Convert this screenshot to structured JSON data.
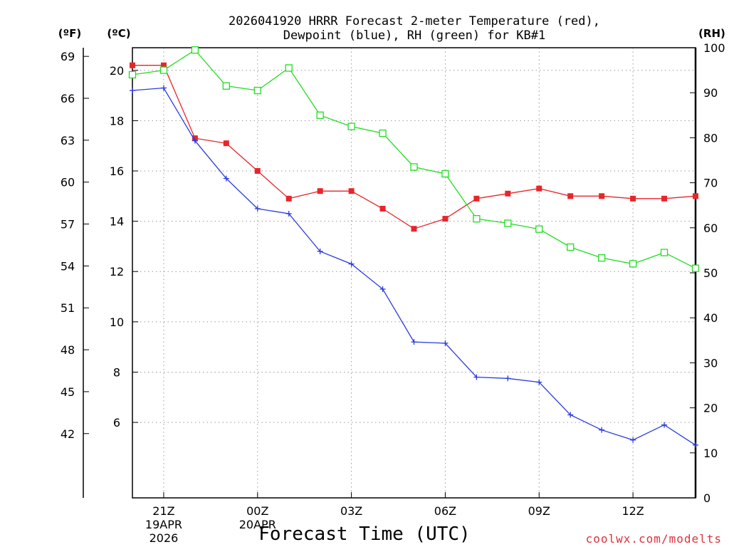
{
  "chart_data": {
    "type": "line",
    "title_line1": "2026041920 HRRR Forecast 2-meter Temperature (red),",
    "title_line2": "Dewpoint (blue), RH (green) for KB#1",
    "xlabel": "Forecast Time (UTC)",
    "unit_f": "(ºF)",
    "unit_c": "(ºC)",
    "unit_rh": "(RH)",
    "watermark": "coolwx.com/modelts",
    "x_hours": [
      20,
      21,
      22,
      23,
      24,
      25,
      26,
      27,
      28,
      29,
      30,
      31,
      32,
      33,
      34,
      35,
      36,
      37,
      38
    ],
    "xlim": [
      20,
      38
    ],
    "x_ticks": [
      {
        "x": 21,
        "label": "21Z",
        "date": "19APR",
        "year": "2026"
      },
      {
        "x": 24,
        "label": "00Z",
        "date": "20APR",
        "year": ""
      },
      {
        "x": 27,
        "label": "03Z",
        "date": "",
        "year": ""
      },
      {
        "x": 30,
        "label": "06Z",
        "date": "",
        "year": ""
      },
      {
        "x": 33,
        "label": "09Z",
        "date": "",
        "year": ""
      },
      {
        "x": 36,
        "label": "12Z",
        "date": "",
        "year": ""
      }
    ],
    "celsius_axis": {
      "ylim": [
        3,
        20.9
      ],
      "ticks": [
        "6",
        "8",
        "10",
        "12",
        "14",
        "16",
        "18",
        "20"
      ]
    },
    "fahrenheit_ticks": [
      "42",
      "45",
      "48",
      "51",
      "54",
      "57",
      "60",
      "63",
      "66",
      "69"
    ],
    "rh_axis": {
      "ylim": [
        0,
        100
      ],
      "ticks": [
        "0",
        "10",
        "20",
        "30",
        "40",
        "50",
        "60",
        "70",
        "80",
        "90",
        "100"
      ]
    },
    "series": [
      {
        "name": "Temperature",
        "color": "#e8252a",
        "axis": "C",
        "marker": "filled-square",
        "values": [
          20.2,
          20.2,
          17.3,
          17.1,
          16.0,
          14.9,
          15.2,
          15.2,
          14.5,
          13.7,
          14.1,
          14.9,
          15.1,
          15.3,
          15.0,
          15.0,
          14.9,
          14.9,
          15.0
        ]
      },
      {
        "name": "Dewpoint",
        "color": "#2a3be0",
        "axis": "C",
        "marker": "plus",
        "values": [
          19.2,
          19.3,
          17.2,
          15.7,
          14.5,
          14.3,
          12.8,
          12.3,
          11.3,
          9.2,
          9.15,
          7.8,
          7.75,
          7.6,
          6.3,
          5.7,
          5.3,
          5.9,
          5.1
        ]
      },
      {
        "name": "RH",
        "color": "#22dd22",
        "axis": "RH",
        "marker": "open-square",
        "values": [
          94,
          95,
          99.5,
          91.5,
          90.5,
          95.5,
          85,
          82.5,
          81,
          73.5,
          72,
          62,
          61,
          59.7,
          55.7,
          53.3,
          52,
          54.5,
          51
        ]
      }
    ]
  }
}
